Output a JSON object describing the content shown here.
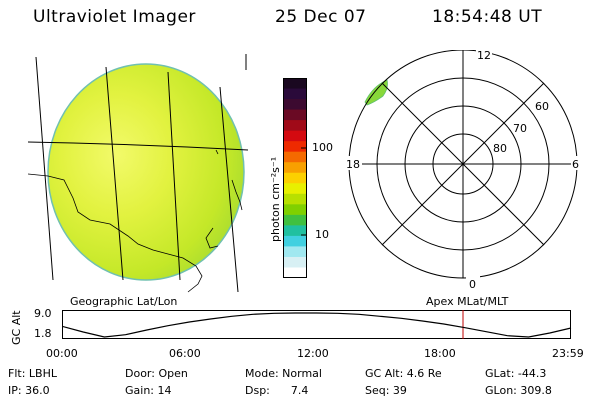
{
  "header": {
    "instrument": "Ultraviolet Imager",
    "date": "25 Dec 07",
    "time": "18:54:48 UT"
  },
  "colorbar": {
    "unit_label": "photon cm⁻²s⁻¹",
    "ticks": [
      "100",
      "10"
    ],
    "colors": [
      "#1a0820",
      "#2a0a3a",
      "#3c0a30",
      "#6a0a24",
      "#a00a18",
      "#d40a10",
      "#ee2a00",
      "#f46a00",
      "#f8a000",
      "#fcd000",
      "#e8f000",
      "#b8e000",
      "#80d000",
      "#40c040",
      "#20c0a0",
      "#40d0e0",
      "#a0e8f0",
      "#d8f0f4",
      "#ffffff"
    ]
  },
  "polar_plot": {
    "mlt_labels": [
      "12",
      "18",
      "6",
      "0"
    ],
    "lat_labels": [
      "60",
      "70",
      "80"
    ]
  },
  "footer": {
    "left_title": "Geographic Lat/Lon",
    "right_title": "Apex MLat/MLT",
    "axis_label": "GC Alt",
    "y_ticks": [
      "9.0",
      "1.8"
    ],
    "x_ticks": [
      "00:00",
      "06:00",
      "12:00",
      "18:00",
      "23:59"
    ]
  },
  "info": {
    "row1": [
      "Flt: LBHL",
      "Door: Open",
      "Mode: Normal",
      "GC Alt: 4.6 Re",
      "GLat: -44.3"
    ],
    "row2": [
      "IP: 36.0",
      "Gain: 14",
      "Dsp:      7.4",
      "Seq: 39",
      "GLon: 309.8"
    ]
  },
  "chart_data": {
    "type": "line",
    "title": "",
    "xlabel": "",
    "ylabel": "GC Alt",
    "x_unit": "hour UT",
    "x": [
      0,
      1,
      2,
      3,
      4,
      5,
      6,
      7,
      8,
      9,
      10,
      11,
      12,
      13,
      14,
      15,
      16,
      17,
      18,
      19,
      20,
      21,
      22,
      23,
      24
    ],
    "series": [
      {
        "values": [
          5.0,
          3.3,
          1.8,
          2.5,
          3.9,
          5.2,
          6.3,
          7.2,
          8.0,
          8.6,
          8.9,
          9.0,
          9.0,
          8.9,
          8.6,
          8.0,
          7.4,
          6.6,
          5.7,
          4.6,
          3.4,
          2.2,
          1.8,
          3.0,
          4.5
        ]
      }
    ],
    "ylim": [
      1.8,
      9.0
    ],
    "xlim": [
      0,
      24
    ],
    "current_time_hour": 18.91
  }
}
